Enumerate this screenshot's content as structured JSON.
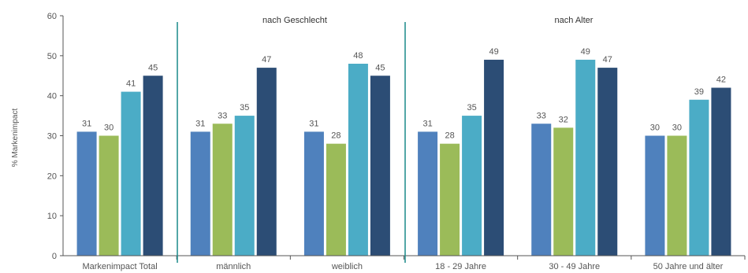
{
  "chart_data": {
    "type": "bar",
    "ylabel": "% Markenimpact",
    "ylim": [
      0,
      60
    ],
    "yticks": [
      0,
      10,
      20,
      30,
      40,
      50,
      60
    ],
    "group_labels": [
      "nach Geschlecht",
      "nach Alter"
    ],
    "categories": [
      "Markenimpact Total",
      "männlich",
      "weiblich",
      "18 - 29 Jahre",
      "30 - 49 Jahre",
      "50 Jahre und älter"
    ],
    "series": [
      {
        "color": "#4f81bd",
        "values": [
          31,
          31,
          31,
          31,
          33,
          30
        ]
      },
      {
        "color": "#9bbb59",
        "values": [
          30,
          33,
          28,
          28,
          32,
          30
        ]
      },
      {
        "color": "#4bacc6",
        "values": [
          41,
          35,
          48,
          35,
          49,
          39
        ]
      },
      {
        "color": "#2c4d75",
        "values": [
          45,
          47,
          45,
          49,
          47,
          42
        ]
      }
    ]
  }
}
